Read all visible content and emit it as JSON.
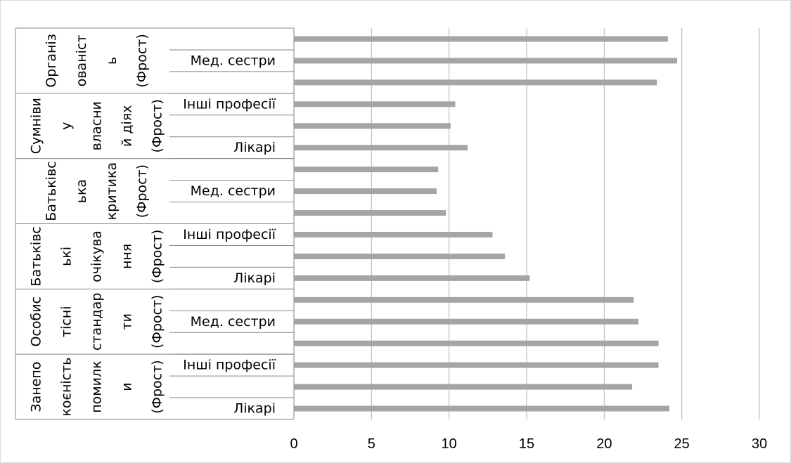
{
  "chart_data": {
    "type": "bar",
    "orientation": "horizontal",
    "xlim": [
      0,
      30
    ],
    "x_ticks": [
      "0",
      "5",
      "10",
      "15",
      "20",
      "25",
      "30"
    ],
    "grid": true,
    "bar_color": "#A5A5A5",
    "groups": [
      {
        "lines": [
          "Занепо",
          "коєність",
          "помилк",
          "и",
          "(Фрост)"
        ],
        "bars": [
          {
            "label": "Лікарі",
            "value": 24.2
          },
          {
            "label": "",
            "value": 21.8
          },
          {
            "label": "Інші професії",
            "value": 23.5
          }
        ]
      },
      {
        "lines": [
          "Особис",
          "тісні",
          "стандар",
          "ти",
          "(Фрост)"
        ],
        "bars": [
          {
            "label": "",
            "value": 23.5
          },
          {
            "label": "Мед. сестри",
            "value": 22.2
          },
          {
            "label": "",
            "value": 21.9
          }
        ]
      },
      {
        "lines": [
          "Батьківс",
          "ькі",
          "очікува",
          "ння",
          "(Фрост)"
        ],
        "bars": [
          {
            "label": "Лікарі",
            "value": 15.2
          },
          {
            "label": "",
            "value": 13.6
          },
          {
            "label": "Інші професії",
            "value": 12.8
          }
        ]
      },
      {
        "lines": [
          "Батьківс",
          "ька",
          "критика",
          "(Фрост)"
        ],
        "bars": [
          {
            "label": "",
            "value": 9.8
          },
          {
            "label": "Мед. сестри",
            "value": 9.2
          },
          {
            "label": "",
            "value": 9.3
          }
        ]
      },
      {
        "lines": [
          "Сумніви",
          "у",
          "власни",
          "й діях",
          "(Фрост)"
        ],
        "bars": [
          {
            "label": "Лікарі",
            "value": 11.2
          },
          {
            "label": "",
            "value": 10.1
          },
          {
            "label": "Інші професії",
            "value": 10.4
          }
        ]
      },
      {
        "lines": [
          "Організ",
          "ованіст",
          "ь",
          "(Фрост)"
        ],
        "bars": [
          {
            "label": "",
            "value": 23.4
          },
          {
            "label": "Мед. сестри",
            "value": 24.7
          },
          {
            "label": "",
            "value": 24.1
          }
        ]
      }
    ]
  }
}
